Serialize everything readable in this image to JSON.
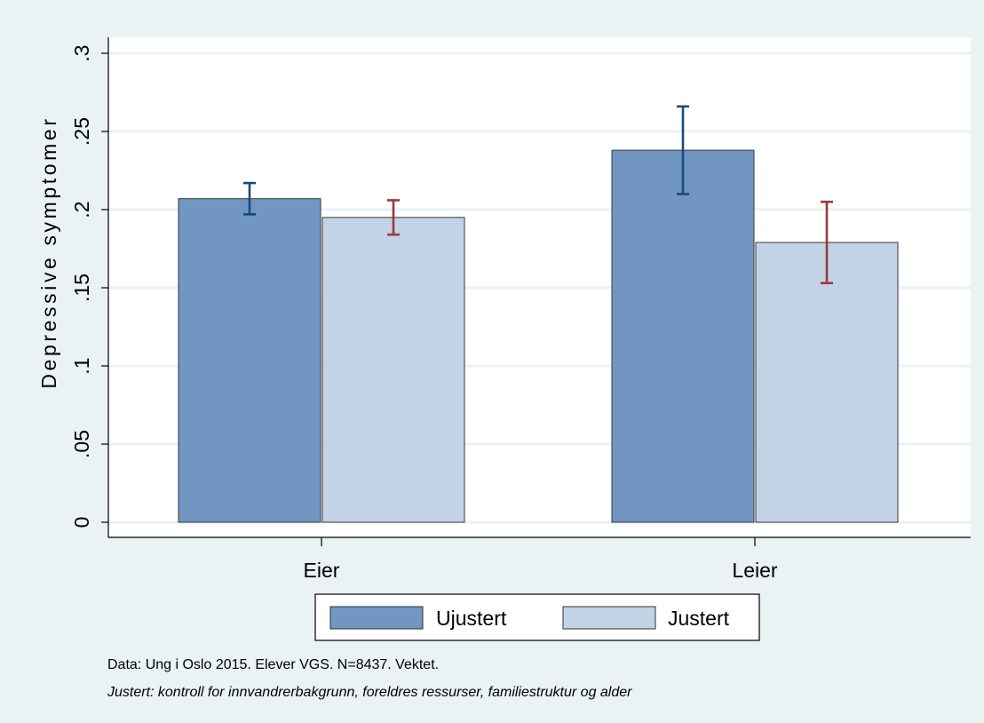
{
  "chart_data": {
    "type": "bar",
    "categories": [
      "Eier",
      "Leier"
    ],
    "series": [
      {
        "name": "Ujustert",
        "values": [
          0.207,
          0.238
        ],
        "ci_low": [
          0.197,
          0.21
        ],
        "ci_high": [
          0.217,
          0.266
        ]
      },
      {
        "name": "Justert",
        "values": [
          0.195,
          0.179
        ],
        "ci_low": [
          0.184,
          0.153
        ],
        "ci_high": [
          0.206,
          0.205
        ]
      }
    ],
    "ylabel": "Depressive symptomer",
    "ylim": [
      0,
      0.3
    ],
    "yticks": [
      {
        "value": 0,
        "label": "0"
      },
      {
        "value": 0.05,
        "label": ".05"
      },
      {
        "value": 0.1,
        "label": ".1"
      },
      {
        "value": 0.15,
        "label": ".15"
      },
      {
        "value": 0.2,
        "label": ".2"
      },
      {
        "value": 0.25,
        "label": ".25"
      },
      {
        "value": 0.3,
        "label": ".3"
      }
    ],
    "grid": true,
    "legend_position": "bottom",
    "notes": [
      "Data: Ung i Oslo 2015. Elever VGS. N=8437. Vektet.",
      "Justert: kontroll for innvandrerbakgrunn, foreldres ressurser, familiestruktur og alder"
    ],
    "colors": {
      "background": "#eaf2f3",
      "plot": "#ffffff",
      "grid": "#eaf2f3",
      "series": [
        "#7096c1",
        "#c2d3e6"
      ],
      "errorbars": [
        "#1a4a7a",
        "#9b3a3a"
      ]
    }
  }
}
